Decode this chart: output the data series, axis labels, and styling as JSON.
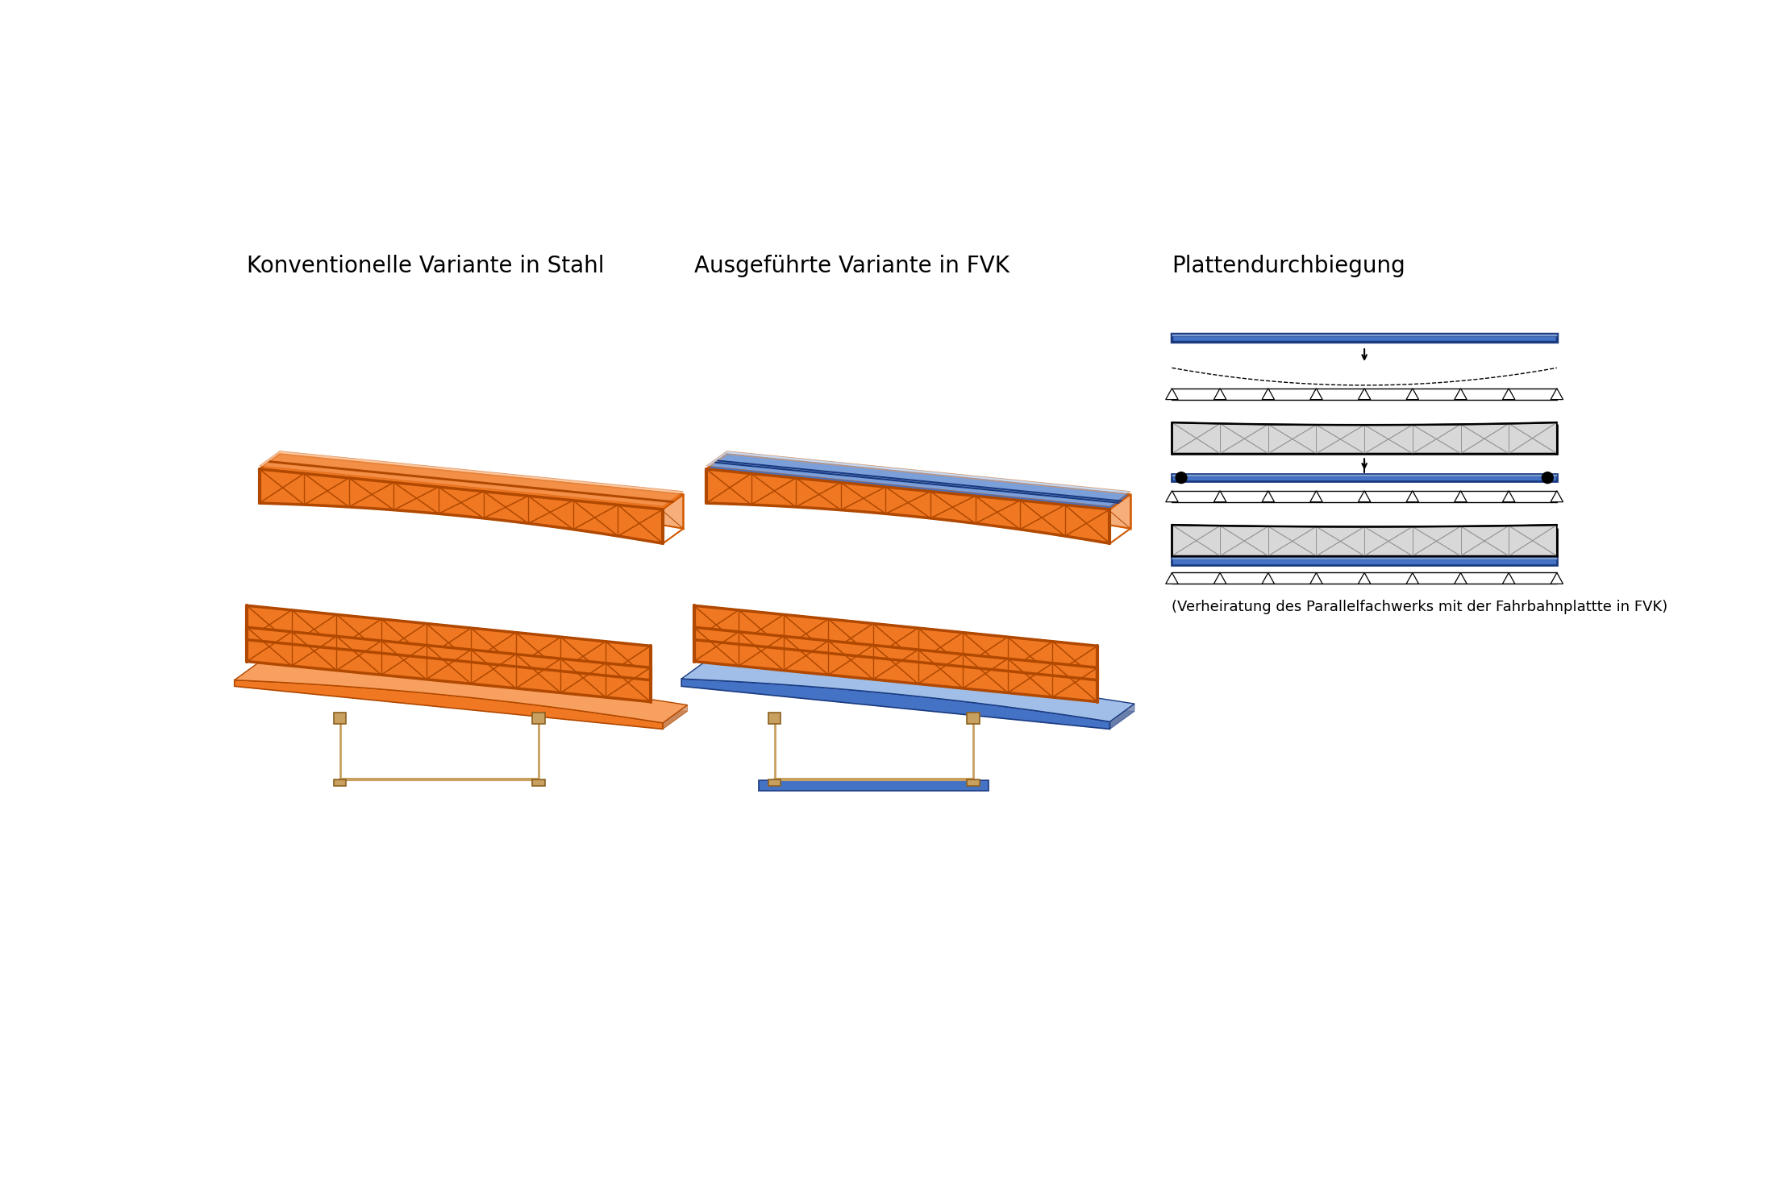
{
  "title1": "Konventionelle Variante in Stahl",
  "title2": "Ausgeführte Variante in FVK",
  "title3": "Plattendurchbiegung",
  "caption1": "(Verheiratung des Parallelfachwerks mit der Fahrbahnplattte in FVK)",
  "orange": "#F07822",
  "orange_dark": "#B04800",
  "orange_mid": "#D05800",
  "orange_top": "#F8A060",
  "blue": "#4472C4",
  "blue_light": "#A0BEE8",
  "blue_dark": "#1A3A80",
  "wood": "#C8A060",
  "wood_dark": "#8B6020",
  "black": "#000000",
  "white": "#FFFFFF",
  "gray": "#909090",
  "gray_light": "#D8D8D8",
  "bg": "#FFFFFF",
  "title_fs": 20,
  "cap_fs": 13
}
